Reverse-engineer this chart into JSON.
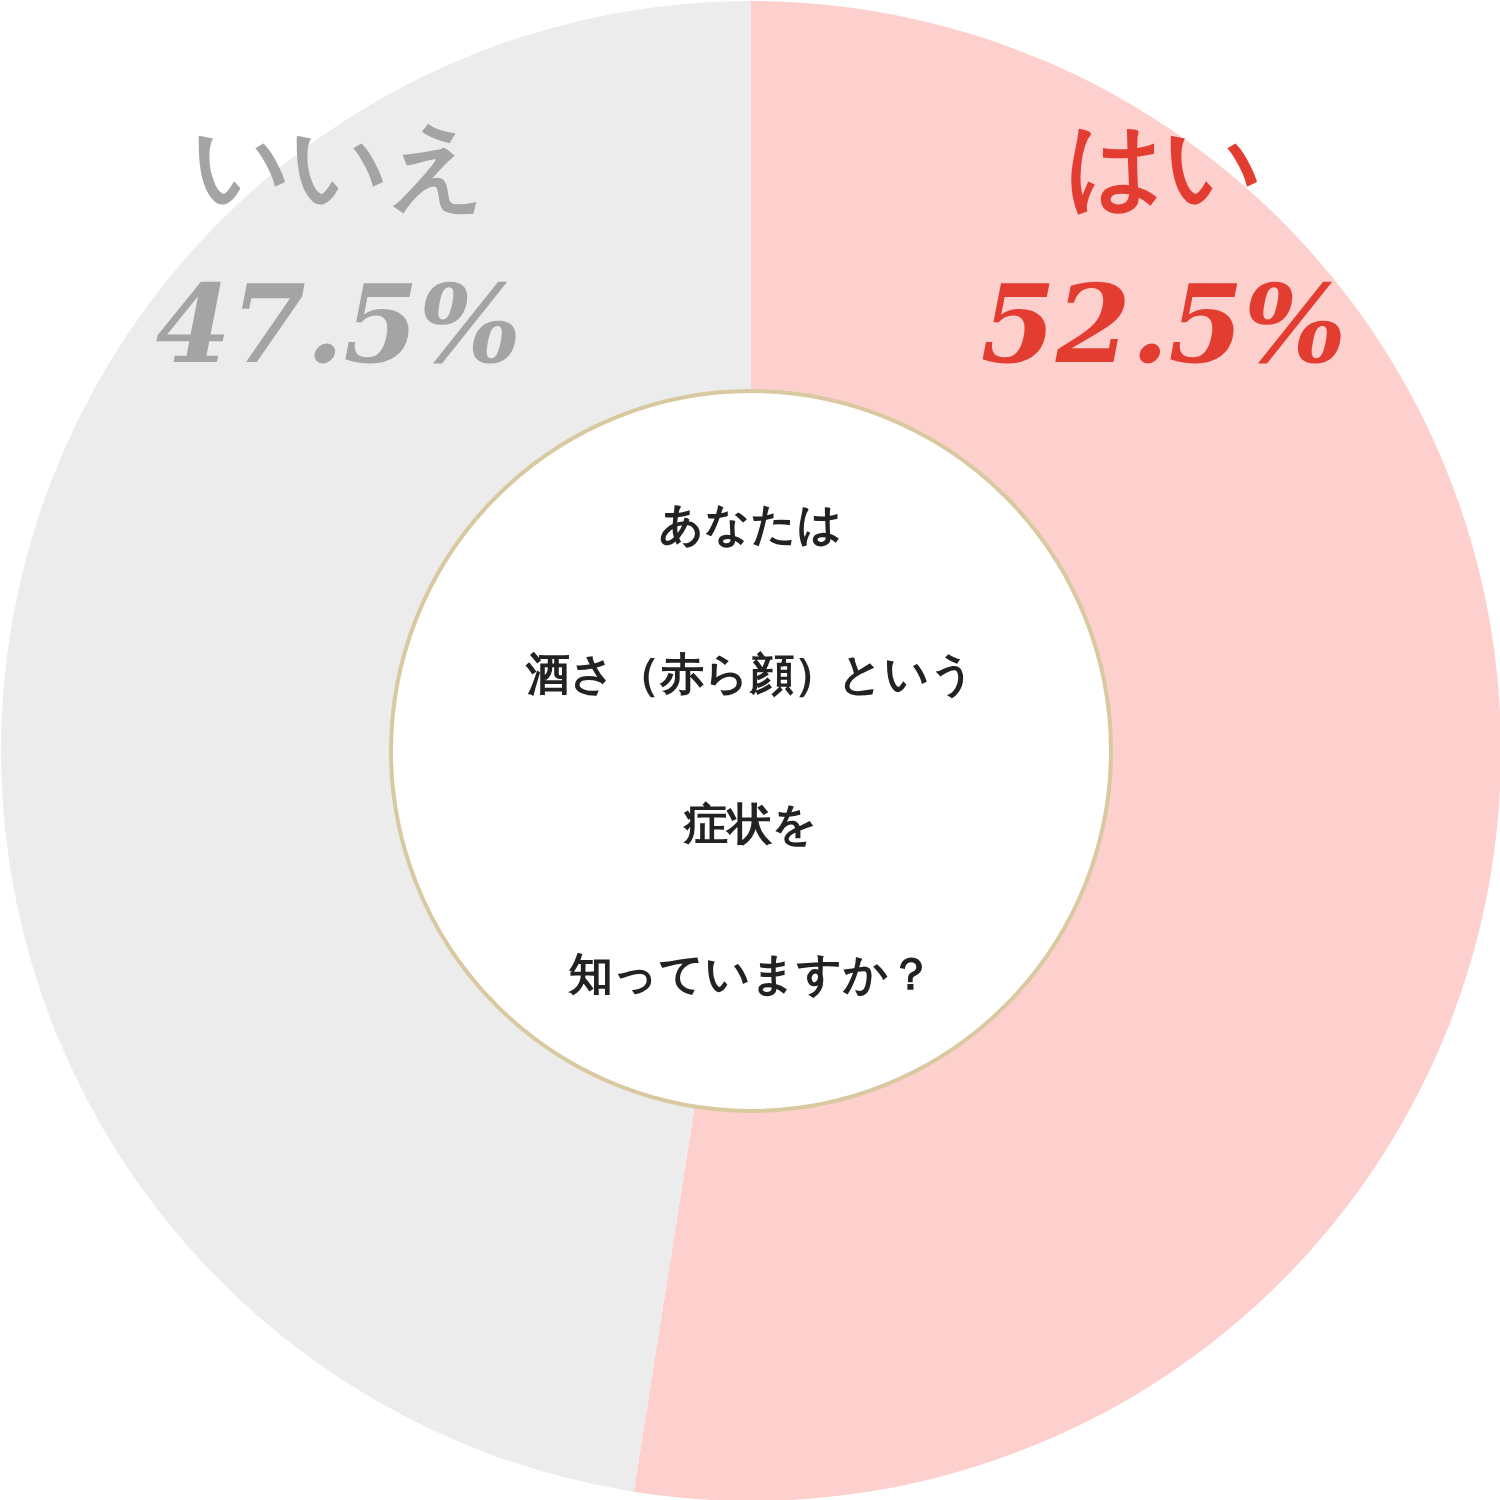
{
  "chart_data": {
    "type": "donut",
    "annotations": [
      "あなたは",
      "酒さ（赤ら顔）という",
      "症状を",
      "知っていますか？"
    ],
    "categories": [
      "はい",
      "いいえ"
    ],
    "values": [
      52.5,
      47.5
    ],
    "colors": [
      "#fdd0cd",
      "#ececec"
    ],
    "value_labels": [
      "52.5%",
      "47.5%"
    ]
  }
}
